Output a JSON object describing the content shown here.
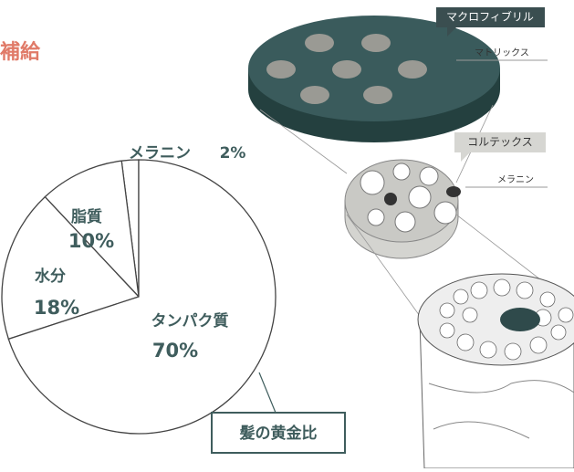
{
  "chart_data": {
    "type": "pie",
    "title": "補給",
    "annotation": "髪の黄金比",
    "categories": [
      "メラニン",
      "脂質",
      "水分",
      "タンパク質"
    ],
    "values": [
      2,
      10,
      18,
      70
    ],
    "value_labels": [
      "2%",
      "10%",
      "18%",
      "70%"
    ],
    "color": "#ffffff"
  },
  "diagram": {
    "labels": [
      "マクロフィブリル",
      "マトリックス",
      "コルテックス",
      "メラニン"
    ]
  }
}
